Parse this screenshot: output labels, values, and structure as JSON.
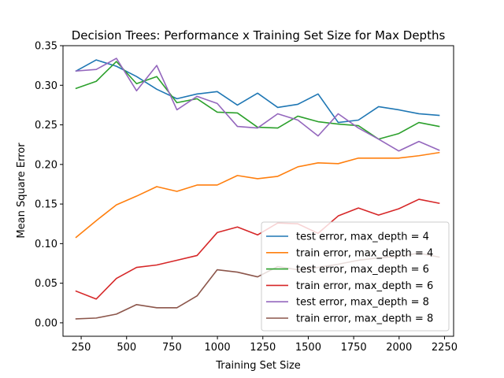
{
  "chart_data": {
    "type": "line",
    "title": "Decision Trees: Performance x Training Set Size for Max Depths",
    "xlabel": "Training Set Size",
    "ylabel": "Mean Square Error",
    "xlim": [
      150,
      2300
    ],
    "ylim": [
      -0.017,
      0.35
    ],
    "xticks": [
      250,
      500,
      750,
      1000,
      1250,
      1500,
      1750,
      2000,
      2250
    ],
    "xtick_labels": [
      "250",
      "500",
      "750",
      "1000",
      "1250",
      "1500",
      "1750",
      "2000",
      "2250"
    ],
    "yticks": [
      0.0,
      0.05,
      0.1,
      0.15,
      0.2,
      0.25,
      0.3,
      0.35
    ],
    "ytick_labels": [
      "0.00",
      "0.05",
      "0.10",
      "0.15",
      "0.20",
      "0.25",
      "0.30",
      "0.35"
    ],
    "grid": false,
    "legend_position": "lower-right",
    "x": [
      222,
      333,
      444,
      555,
      666,
      777,
      888,
      999,
      1110,
      1221,
      1332,
      1443,
      1554,
      1665,
      1776,
      1887,
      1998,
      2109,
      2220
    ],
    "series": [
      {
        "name": "test error, max_depth = 4",
        "color": "#1f77b4",
        "values": [
          0.318,
          0.332,
          0.324,
          0.311,
          0.295,
          0.283,
          0.289,
          0.292,
          0.275,
          0.29,
          0.272,
          0.276,
          0.289,
          0.253,
          0.256,
          0.273,
          0.269,
          0.264,
          0.262
        ]
      },
      {
        "name": "train error, max_depth = 4",
        "color": "#ff7f0e",
        "values": [
          0.108,
          0.129,
          0.149,
          0.16,
          0.172,
          0.166,
          0.174,
          0.174,
          0.186,
          0.182,
          0.185,
          0.197,
          0.202,
          0.201,
          0.208,
          0.208,
          0.208,
          0.211,
          0.215
        ]
      },
      {
        "name": "test error, max_depth = 6",
        "color": "#2ca02c",
        "values": [
          0.296,
          0.305,
          0.33,
          0.302,
          0.311,
          0.278,
          0.283,
          0.266,
          0.265,
          0.247,
          0.246,
          0.261,
          0.254,
          0.251,
          0.249,
          0.232,
          0.239,
          0.253,
          0.248
        ]
      },
      {
        "name": "train error, max_depth = 6",
        "color": "#d62728",
        "values": [
          0.04,
          0.03,
          0.056,
          0.07,
          0.073,
          0.079,
          0.085,
          0.114,
          0.121,
          0.111,
          0.126,
          0.125,
          0.113,
          0.135,
          0.145,
          0.136,
          0.144,
          0.156,
          0.151
        ]
      },
      {
        "name": "test error, max_depth = 8",
        "color": "#9467bd",
        "values": [
          0.318,
          0.32,
          0.334,
          0.293,
          0.325,
          0.269,
          0.286,
          0.277,
          0.248,
          0.246,
          0.264,
          0.256,
          0.236,
          0.264,
          0.246,
          0.232,
          0.217,
          0.229,
          0.218
        ]
      },
      {
        "name": "train error, max_depth = 8",
        "color": "#8c564b",
        "values": [
          0.005,
          0.006,
          0.011,
          0.023,
          0.019,
          0.019,
          0.034,
          0.067,
          0.064,
          0.058,
          0.071,
          0.067,
          0.07,
          0.074,
          0.079,
          0.082,
          0.084,
          0.088,
          0.083
        ]
      }
    ]
  }
}
